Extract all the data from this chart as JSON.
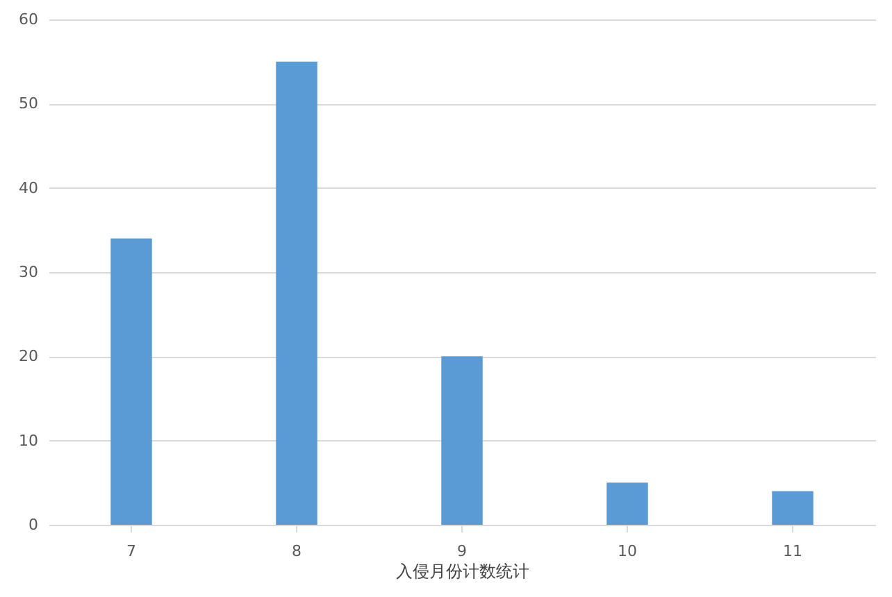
{
  "chart_data": {
    "type": "bar",
    "xlabel": "入侵月份计数统计",
    "categories": [
      "7",
      "8",
      "9",
      "10",
      "11"
    ],
    "values": [
      34,
      55,
      20,
      5,
      4
    ],
    "color": "#5b9bd5",
    "ylim": [
      0,
      60
    ],
    "yticks": [
      0,
      10,
      20,
      30,
      40,
      50,
      60
    ],
    "grid": "y"
  }
}
